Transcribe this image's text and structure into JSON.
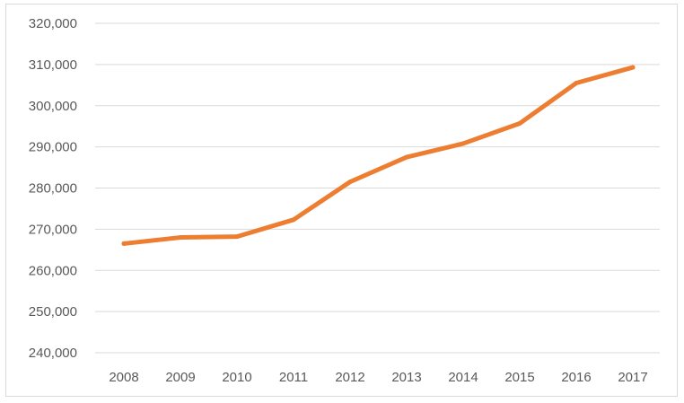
{
  "chart_data": {
    "type": "line",
    "title": "",
    "xlabel": "",
    "ylabel": "",
    "x": [
      "2008",
      "2009",
      "2010",
      "2011",
      "2012",
      "2013",
      "2014",
      "2015",
      "2016",
      "2017"
    ],
    "series": [
      {
        "values": [
          266500,
          268000,
          268200,
          272300,
          281500,
          287500,
          290800,
          295700,
          305500,
          309300
        ]
      }
    ],
    "ylim": [
      240000,
      320000
    ],
    "yticks": [
      240000,
      250000,
      260000,
      270000,
      280000,
      290000,
      300000,
      310000,
      320000
    ],
    "ytick_labels": [
      "240,000",
      "250,000",
      "260,000",
      "270,000",
      "280,000",
      "290,000",
      "300,000",
      "310,000",
      "320,000"
    ],
    "grid": true,
    "legend": "none",
    "colors": {
      "line": "#ed7d31",
      "grid": "#d9d9d9",
      "text": "#595959"
    }
  }
}
